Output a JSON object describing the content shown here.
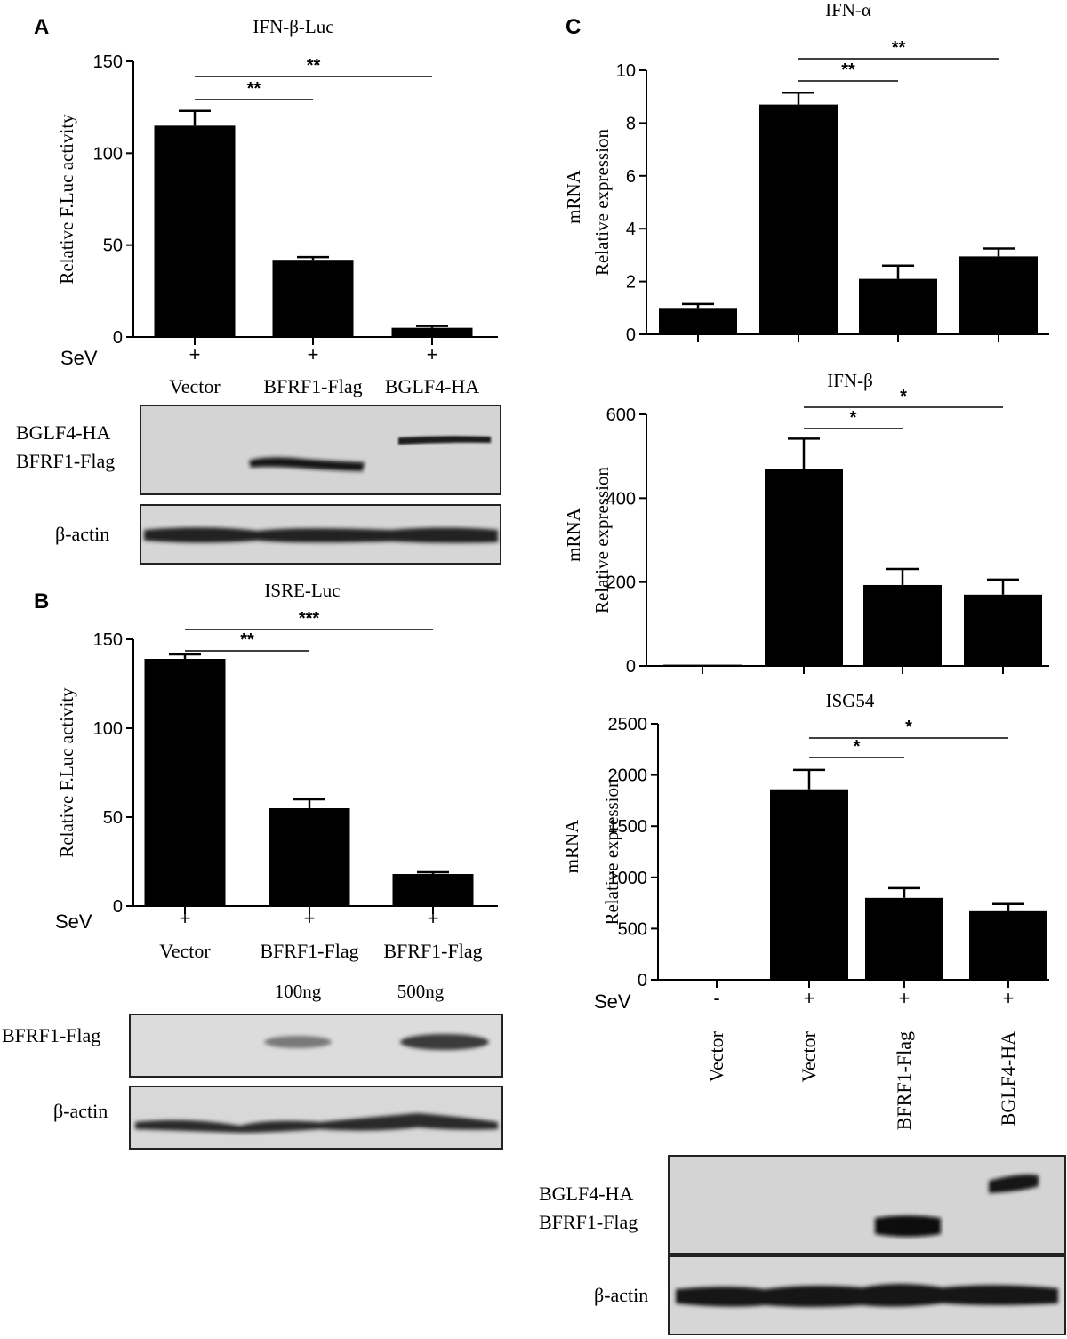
{
  "panel_letters": [
    "A",
    "B",
    "C"
  ],
  "chart_data": [
    {
      "panel": "A",
      "type": "bar",
      "title": "IFN-β-Luc",
      "ylabel": "Relative F.Luc activity",
      "ylim": [
        0,
        150
      ],
      "yticks": [
        "0",
        "50",
        "100",
        "150"
      ],
      "categories": [
        "Vector",
        "BFRF1-Flag",
        "BGLF4-HA"
      ],
      "sev_row_label": "SeV",
      "sev": [
        "+",
        "+",
        "+"
      ],
      "values": [
        115,
        42,
        5
      ],
      "errors": [
        8,
        1.5,
        1
      ],
      "significance": [
        {
          "from": 0,
          "to": 1,
          "label": "**"
        },
        {
          "from": 0,
          "to": 2,
          "label": "**"
        }
      ]
    },
    {
      "panel": "B",
      "type": "bar",
      "title": "ISRE-Luc",
      "ylabel": "Relative F.Luc activity",
      "ylim": [
        0,
        150
      ],
      "yticks": [
        "0",
        "50",
        "100",
        "150"
      ],
      "categories": [
        "Vector",
        "BFRF1-Flag",
        "BFRF1-Flag"
      ],
      "sev_row_label": "SeV",
      "sev": [
        "+",
        "+",
        "+"
      ],
      "doses": [
        "100ng",
        "500ng"
      ],
      "values": [
        139,
        55,
        18
      ],
      "errors": [
        2.5,
        5,
        1
      ],
      "significance": [
        {
          "from": 0,
          "to": 1,
          "label": "**"
        },
        {
          "from": 0,
          "to": 2,
          "label": "***"
        }
      ]
    },
    {
      "panel": "C",
      "type": "bar",
      "title": "IFN-α",
      "ylabel": "Relative expression",
      "ylabel2": "mRNA",
      "ylim": [
        0,
        10
      ],
      "yticks": [
        "0",
        "2",
        "4",
        "6",
        "8",
        "10"
      ],
      "categories": [
        "Vector",
        "Vector",
        "BFRF1-Flag",
        "BGLF4-HA"
      ],
      "values": [
        1.0,
        8.7,
        2.1,
        2.95
      ],
      "errors": [
        0.15,
        0.45,
        0.5,
        0.3
      ],
      "significance": [
        {
          "from": 1,
          "to": 2,
          "label": "**"
        },
        {
          "from": 1,
          "to": 3,
          "label": "**"
        }
      ]
    },
    {
      "panel": "C",
      "type": "bar",
      "title": "IFN-β",
      "ylabel": "Relative expression",
      "ylabel2": "mRNA",
      "ylim": [
        0,
        600
      ],
      "yticks": [
        "0",
        "200",
        "400",
        "600"
      ],
      "categories": [
        "Vector",
        "Vector",
        "BFRF1-Flag",
        "BGLF4-HA"
      ],
      "values": [
        3,
        470,
        193,
        170
      ],
      "errors": [
        0,
        72,
        38,
        36
      ],
      "significance": [
        {
          "from": 1,
          "to": 2,
          "label": "*"
        },
        {
          "from": 1,
          "to": 3,
          "label": "*"
        }
      ]
    },
    {
      "panel": "C",
      "type": "bar",
      "title": "ISG54",
      "ylabel": "Relative expression",
      "ylabel2": "mRNA",
      "ylim": [
        0,
        2500
      ],
      "yticks": [
        "0",
        "500",
        "1000",
        "1500",
        "2000",
        "2500"
      ],
      "categories": [
        "Vector",
        "Vector",
        "BFRF1-Flag",
        "BGLF4-HA"
      ],
      "sev_row_label": "SeV",
      "sev": [
        "-",
        "+",
        "+",
        "+"
      ],
      "values": [
        0,
        1860,
        800,
        670
      ],
      "errors": [
        0,
        190,
        95,
        70
      ],
      "significance": [
        {
          "from": 1,
          "to": 2,
          "label": "*"
        },
        {
          "from": 1,
          "to": 3,
          "label": "*"
        }
      ]
    }
  ],
  "blots": {
    "a_target_labels": [
      "BGLF4-HA",
      "BFRF1-Flag"
    ],
    "a_actin_label": "β-actin",
    "b_target_label": "BFRF1-Flag",
    "b_actin_label": "β-actin",
    "c_target_labels": [
      "BGLF4-HA",
      "BFRF1-Flag"
    ],
    "c_actin_label": "β-actin"
  }
}
